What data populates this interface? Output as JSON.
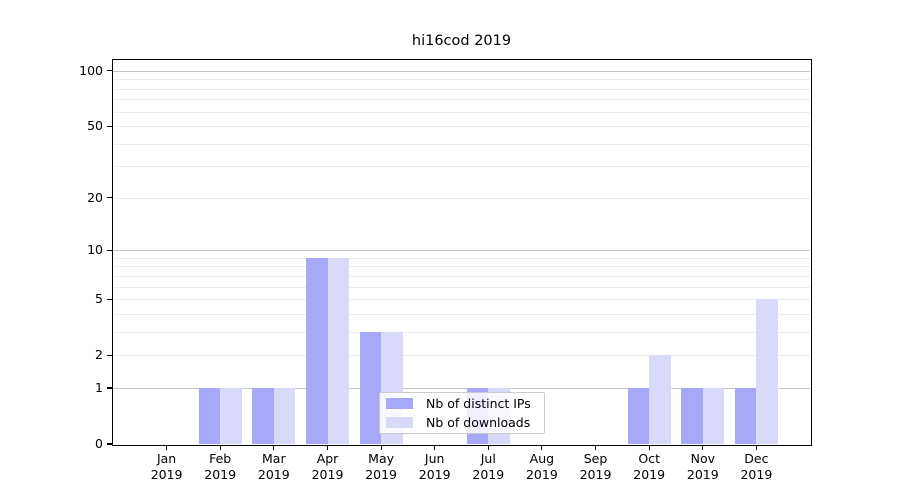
{
  "chart_data": {
    "type": "bar",
    "title": "hi16cod 2019",
    "categories": [
      "Jan",
      "Feb",
      "Mar",
      "Apr",
      "May",
      "Jun",
      "Jul",
      "Aug",
      "Sep",
      "Oct",
      "Nov",
      "Dec"
    ],
    "year_label": "2019",
    "series": [
      {
        "name": "Nb of distinct IPs",
        "color": "#a8a8f8",
        "values": [
          0,
          1,
          1,
          9,
          3,
          0,
          1,
          0,
          0,
          1,
          1,
          1
        ]
      },
      {
        "name": "Nb of downloads",
        "color": "#d9d9fa",
        "values": [
          0,
          1,
          1,
          9,
          3,
          0,
          1,
          0,
          0,
          2,
          1,
          5
        ]
      }
    ],
    "xlabel": "",
    "ylabel": "",
    "yscale": "log1p",
    "ylim": [
      0,
      114.6
    ],
    "yticks": [
      0,
      1,
      2,
      5,
      10,
      20,
      50,
      100
    ],
    "major_gridlines": [
      1,
      10,
      100
    ],
    "minor_gridlines": [
      2,
      3,
      4,
      5,
      6,
      7,
      8,
      9,
      20,
      30,
      40,
      50,
      60,
      70,
      80,
      90
    ],
    "grid": true,
    "legend_position": "lower center"
  },
  "colors": {
    "background": "#ffffff",
    "spine": "#000000",
    "major_grid": "#c6c6c6",
    "minor_grid": "#ececec",
    "text": "#000000",
    "legend_border": "#cccccc"
  }
}
